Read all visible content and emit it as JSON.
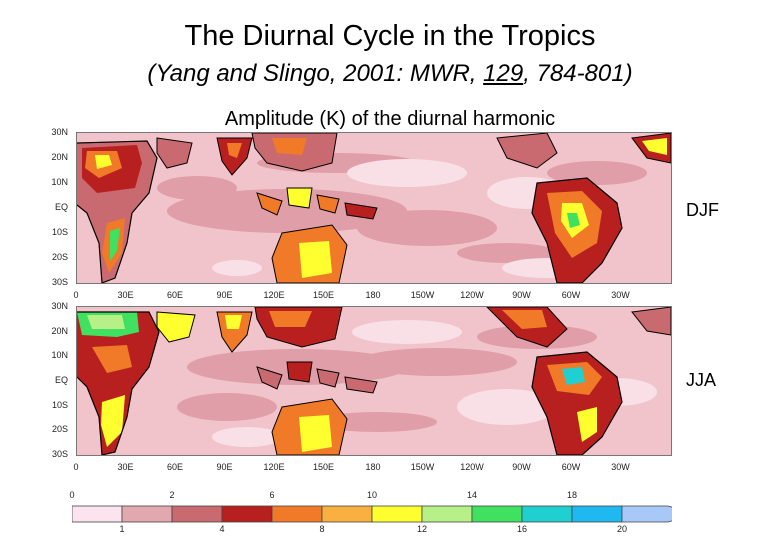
{
  "header": {
    "title": "The Diurnal Cycle in the Tropics",
    "subtitle_pre": "(Yang and Slingo, 2001: MWR, ",
    "subtitle_volume": "129",
    "subtitle_post": ", 784-801)",
    "caption": "Amplitude (K) of the diurnal harmonic"
  },
  "panels": [
    {
      "id": "djf",
      "label": "DJF"
    },
    {
      "id": "jja",
      "label": "JJA"
    }
  ],
  "lat_labels": [
    "30N",
    "20N",
    "10N",
    "EQ",
    "10S",
    "20S",
    "30S"
  ],
  "lon_labels": [
    "0",
    "30E",
    "60E",
    "90E",
    "120E",
    "150E",
    "180",
    "150W",
    "120W",
    "90W",
    "60W",
    "30W"
  ],
  "colorbar": {
    "top_labels": [
      "0",
      "2",
      "6",
      "10",
      "14",
      "18"
    ],
    "bottom_labels": [
      "1",
      "4",
      "8",
      "12",
      "16",
      "20"
    ],
    "colors": [
      "#fce4ef",
      "#e1a8b0",
      "#c86a6f",
      "#b82020",
      "#f07a28",
      "#f8b040",
      "#ffff30",
      "#b8f088",
      "#40e060",
      "#20d0d0",
      "#20b8f0",
      "#a8c8f8"
    ]
  },
  "colors": {
    "ocean_base": "#f1c4cc",
    "ocean_dark": "#df9ea8",
    "ocean_light": "#f8e0e6",
    "land_low": "#c86a6f",
    "land_mid": "#b82020",
    "land_high": "#f07a28",
    "land_peak": "#ffff30",
    "land_extreme": "#40e060",
    "coast": "#000000"
  }
}
